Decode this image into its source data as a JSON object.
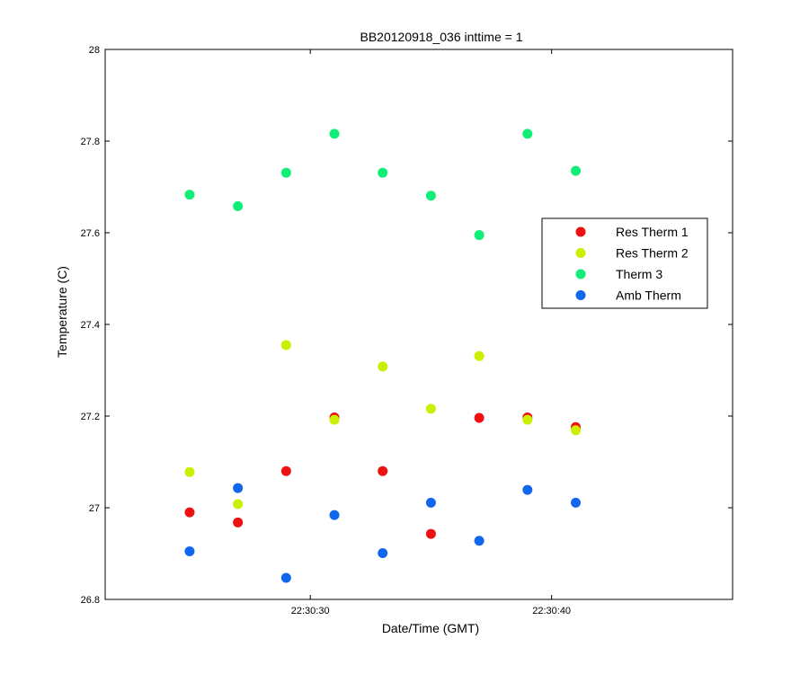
{
  "chart_data": {
    "type": "scatter",
    "title": "BB20120918_036 inttime = 1",
    "xlabel": "Date/Time (GMT)",
    "ylabel": "Temperature (C)",
    "x_ticks": [
      "22:30:30",
      "22:30:40"
    ],
    "y_ticks": [
      "26.8",
      "27",
      "27.2",
      "27.4",
      "27.6",
      "27.8",
      "28"
    ],
    "ylim": [
      26.8,
      28.0
    ],
    "xlim_seconds": [
      21.5,
      47.5
    ],
    "x_seconds_of_minute": [
      25,
      27,
      29,
      31,
      33,
      35,
      37,
      39,
      41
    ],
    "grid": false,
    "legend_position": "right",
    "series": [
      {
        "name": "Res Therm 1",
        "color": "#ee1111",
        "values": [
          26.99,
          26.968,
          27.08,
          27.197,
          27.08,
          26.943,
          27.196,
          27.197,
          27.176
        ]
      },
      {
        "name": "Res Therm 2",
        "color": "#ccee00",
        "values": [
          27.078,
          27.008,
          27.355,
          27.192,
          27.308,
          27.216,
          27.331,
          27.192,
          27.169
        ]
      },
      {
        "name": "Therm 3",
        "color": "#11ee77",
        "values": [
          27.683,
          27.658,
          27.731,
          27.816,
          27.731,
          27.681,
          27.595,
          27.816,
          27.735
        ]
      },
      {
        "name": "Amb Therm",
        "color": "#1166ee",
        "values": [
          26.905,
          27.043,
          26.847,
          26.984,
          26.901,
          27.011,
          26.928,
          27.039,
          27.011
        ]
      }
    ]
  }
}
